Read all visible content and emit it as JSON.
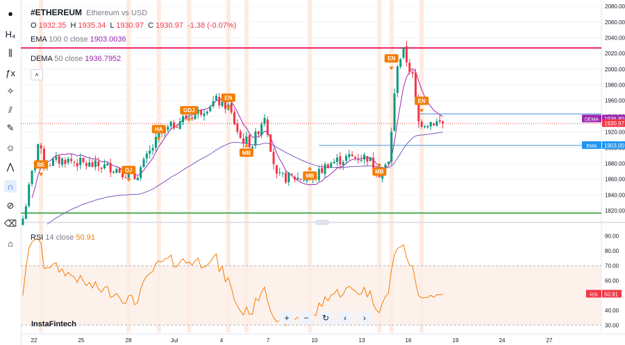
{
  "toolbar": {
    "tools": [
      {
        "name": "logo-icon",
        "glyph": "●"
      },
      {
        "name": "symbol-icon",
        "glyph": "H₄"
      },
      {
        "name": "candles-icon",
        "glyph": "⫼"
      },
      {
        "name": "indicator-icon",
        "glyph": "ƒx"
      },
      {
        "name": "node-icon",
        "glyph": "⟡"
      },
      {
        "name": "brush-icon",
        "glyph": "⫽"
      },
      {
        "name": "pencil-icon",
        "glyph": "✎"
      },
      {
        "name": "emoji-icon",
        "glyph": "☺"
      },
      {
        "name": "pattern-icon",
        "glyph": "⋀"
      },
      {
        "name": "magnet-icon",
        "glyph": "∩"
      },
      {
        "name": "eye-off-icon",
        "glyph": "⊘"
      },
      {
        "name": "trash-icon",
        "glyph": "⌫"
      },
      {
        "name": "home-icon",
        "glyph": "⌂"
      }
    ]
  },
  "header": {
    "symbol": "#ETHEREUM",
    "description": "Ethereum vs USD",
    "o_label": "O",
    "o_value": "1932.35",
    "h_label": "H",
    "h_value": "1935.34",
    "l_label": "L",
    "l_value": "1930.97",
    "c_label": "C",
    "c_value": "1930.97",
    "change": "-1.38 (-0.07%)"
  },
  "ema_legend": {
    "name": "EMA",
    "params": "100 0 close",
    "value": "1903.0036"
  },
  "dema_legend": {
    "name": "DEMA",
    "params": "50 close",
    "value": "1936.7952"
  },
  "rsi_legend": {
    "name": "RSI",
    "params": "14 close",
    "value": "50.91"
  },
  "collapse_glyph": "˄",
  "watermark": "InstaFintech",
  "nav_controls": [
    "+",
    "−",
    "↻",
    "‹",
    "›"
  ],
  "colors": {
    "up": "#089981",
    "down": "#f23645",
    "dema": "#9c27b0",
    "ema": "#7e57c2",
    "resistance": "#e91e63",
    "support": "#4caf50",
    "rsi": "#f57c00",
    "signal_band": "#fde3d3"
  },
  "chart_data": {
    "type": "candlestick",
    "x_ticks": [
      "22",
      "25",
      "28",
      "Jul",
      "4",
      "7",
      "10",
      "13",
      "16",
      "19",
      "24",
      "27"
    ],
    "price_axis": {
      "ylim": [
        1806,
        2088
      ],
      "ticks": [
        2080,
        2060,
        2040,
        2020,
        2000,
        1980,
        1960,
        1940,
        1920,
        1900,
        1880,
        1860,
        1840,
        1820
      ]
    },
    "horizontal_lines": [
      {
        "name": "resistance",
        "value": 2027
      },
      {
        "name": "support",
        "value": 1817
      }
    ],
    "price_labels": [
      {
        "text": "DEMA",
        "value_text": "1936.80",
        "value": 1936.8
      },
      {
        "text": "",
        "value_text": "1930.97",
        "value": 1930.97
      },
      {
        "text": "EMA",
        "value_text": "1903.00",
        "value": 1903.0
      }
    ],
    "signals": [
      {
        "label": "BE",
        "index": 6,
        "dir": "down",
        "price": 1877
      },
      {
        "label": "DJ",
        "index": 35,
        "dir": "down",
        "price": 1870
      },
      {
        "label": "HA",
        "index": 45,
        "dir": "down",
        "price": 1922
      },
      {
        "label": "GDJ",
        "index": 55,
        "dir": "down",
        "price": 1946
      },
      {
        "label": "EN",
        "index": 68,
        "dir": "down",
        "price": 1962
      },
      {
        "label": "MB",
        "index": 74,
        "dir": "up",
        "price": 1892
      },
      {
        "label": "MB",
        "index": 95,
        "dir": "up",
        "price": 1863
      },
      {
        "label": "MB",
        "index": 118,
        "dir": "up",
        "price": 1868
      },
      {
        "label": "EN",
        "index": 122,
        "dir": "down",
        "price": 2012
      },
      {
        "label": "EN",
        "index": 132,
        "dir": "down",
        "price": 1958
      }
    ],
    "rsi_axis": {
      "ylim": [
        25,
        95
      ],
      "ticks": [
        90,
        80,
        70,
        60,
        50,
        40,
        30
      ],
      "label": "RSI",
      "value_text": "50.91",
      "value": 50.91
    }
  }
}
